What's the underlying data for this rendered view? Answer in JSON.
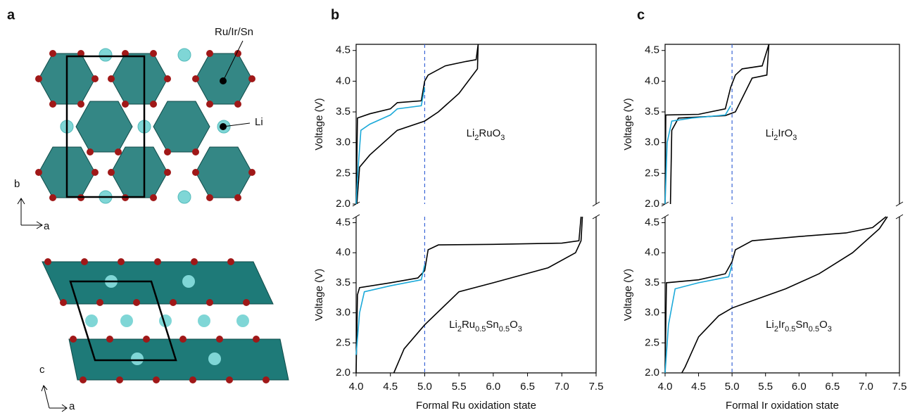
{
  "structure": {
    "panel": "a",
    "labels": [
      "Ru/Ir/Sn",
      "Li"
    ],
    "axes_top": [
      "b",
      "a"
    ],
    "axes_bottom": [
      "c",
      "a"
    ]
  },
  "chart_data": [
    {
      "type": "line",
      "panel": "b",
      "ylabel": "Voltage (V)",
      "annotation_parts": [
        "Li",
        "2",
        "RuO",
        "3"
      ],
      "xlim": [
        4,
        7.5
      ],
      "ylim": [
        2,
        4.6
      ],
      "vline": 5,
      "yticks": [
        {
          "value": 2,
          "label": "2.0"
        },
        {
          "value": 2.5,
          "label": "2.5"
        },
        {
          "value": 3,
          "label": "3.0"
        },
        {
          "value": 3.5,
          "label": "3.5"
        },
        {
          "value": 4,
          "label": "4.0"
        },
        {
          "value": 4.5,
          "label": "4.5"
        }
      ],
      "series": [
        {
          "color": "#000000",
          "x": [
            4.0,
            4.02,
            4.2,
            4.5,
            4.6,
            4.95,
            5.0,
            5.05,
            5.3,
            5.6,
            5.75,
            5.78
          ],
          "values": [
            2.0,
            3.4,
            3.47,
            3.55,
            3.65,
            3.68,
            4.0,
            4.1,
            4.25,
            4.32,
            4.35,
            4.6
          ]
        },
        {
          "color": "#000000",
          "x": [
            5.78,
            5.77,
            5.5,
            5.2,
            5.0,
            4.6,
            4.4,
            4.2,
            4.05,
            4.01
          ],
          "values": [
            4.6,
            4.2,
            3.8,
            3.5,
            3.35,
            3.2,
            3.0,
            2.8,
            2.6,
            2.0
          ]
        },
        {
          "color": "#1ba9d9",
          "x": [
            4.0,
            4.03,
            4.07,
            4.2,
            4.5,
            4.6,
            4.95,
            5.0
          ],
          "values": [
            2.0,
            2.6,
            3.2,
            3.3,
            3.45,
            3.55,
            3.6,
            3.9
          ]
        }
      ]
    },
    {
      "type": "line",
      "xlabel": "Formal Ru oxidation state",
      "ylabel": "Voltage (V)",
      "annotation_parts": [
        "Li",
        "2",
        "Ru",
        "0.5",
        "Sn",
        "0.5",
        "O",
        "3"
      ],
      "xlim": [
        4,
        7.5
      ],
      "ylim": [
        2,
        4.6
      ],
      "vline": 5,
      "xticks": [
        {
          "value": 4,
          "label": "4.0"
        },
        {
          "value": 4.5,
          "label": "4.5"
        },
        {
          "value": 5,
          "label": "5.0"
        },
        {
          "value": 5.5,
          "label": "5.5"
        },
        {
          "value": 6,
          "label": "6.0"
        },
        {
          "value": 6.5,
          "label": "6.5"
        },
        {
          "value": 7,
          "label": "7.0"
        },
        {
          "value": 7.5,
          "label": "7.5"
        }
      ],
      "yticks": [
        {
          "value": 2,
          "label": "2.0"
        },
        {
          "value": 2.5,
          "label": "2.5"
        },
        {
          "value": 3,
          "label": "3.0"
        },
        {
          "value": 3.5,
          "label": "3.5"
        },
        {
          "value": 4,
          "label": "4.0"
        },
        {
          "value": 4.5,
          "label": "4.5"
        }
      ],
      "series": [
        {
          "color": "#000000",
          "x": [
            4.0,
            4.02,
            4.05,
            4.5,
            4.9,
            5.0,
            5.05,
            5.2,
            6.0,
            7.0,
            7.25,
            7.28
          ],
          "values": [
            2.0,
            3.3,
            3.42,
            3.5,
            3.58,
            3.7,
            4.05,
            4.13,
            4.14,
            4.16,
            4.2,
            4.6
          ]
        },
        {
          "color": "#000000",
          "x": [
            7.3,
            7.28,
            7.2,
            6.8,
            6.0,
            5.5,
            5.0,
            4.7,
            4.55
          ],
          "values": [
            4.6,
            4.2,
            4.0,
            3.75,
            3.5,
            3.35,
            2.8,
            2.4,
            2.0
          ]
        },
        {
          "color": "#1ba9d9",
          "x": [
            4.0,
            4.05,
            4.12,
            4.5,
            4.95,
            5.0
          ],
          "values": [
            2.3,
            3.0,
            3.35,
            3.45,
            3.55,
            3.8
          ]
        }
      ]
    },
    {
      "type": "line",
      "panel": "c",
      "ylabel": "Voltage (V)",
      "annotation_parts": [
        "Li",
        "2",
        "IrO",
        "3"
      ],
      "xlim": [
        4,
        7.5
      ],
      "ylim": [
        2,
        4.6
      ],
      "vline": 5,
      "yticks": [
        {
          "value": 2,
          "label": "2.0"
        },
        {
          "value": 2.5,
          "label": "2.5"
        },
        {
          "value": 3,
          "label": "3.0"
        },
        {
          "value": 3.5,
          "label": "3.5"
        },
        {
          "value": 4,
          "label": "4.0"
        },
        {
          "value": 4.5,
          "label": "4.5"
        }
      ],
      "series": [
        {
          "color": "#000000",
          "x": [
            4.0,
            4.01,
            4.5,
            4.9,
            4.98,
            5.05,
            5.15,
            5.45,
            5.55
          ],
          "values": [
            2.0,
            3.45,
            3.46,
            3.55,
            3.9,
            4.1,
            4.2,
            4.25,
            4.6
          ]
        },
        {
          "color": "#000000",
          "x": [
            5.55,
            5.52,
            5.3,
            5.05,
            4.9,
            4.2,
            4.1,
            4.08
          ],
          "values": [
            4.6,
            4.1,
            4.05,
            3.5,
            3.44,
            3.4,
            3.2,
            2.0
          ]
        },
        {
          "color": "#1ba9d9",
          "x": [
            4.0,
            4.03,
            4.1,
            4.4,
            4.9,
            4.98
          ],
          "values": [
            2.0,
            3.0,
            3.35,
            3.4,
            3.45,
            3.6
          ]
        }
      ]
    },
    {
      "type": "line",
      "xlabel": "Formal Ir oxidation state",
      "ylabel": "Voltage (V)",
      "annotation_parts": [
        "Li",
        "2",
        "Ir",
        "0.5",
        "Sn",
        "0.5",
        "O",
        "3"
      ],
      "xlim": [
        4,
        7.5
      ],
      "ylim": [
        2,
        4.6
      ],
      "vline": 5,
      "xticks": [
        {
          "value": 4,
          "label": "4.0"
        },
        {
          "value": 4.5,
          "label": "4.5"
        },
        {
          "value": 5,
          "label": "5.0"
        },
        {
          "value": 5.5,
          "label": "5.5"
        },
        {
          "value": 6,
          "label": "6.0"
        },
        {
          "value": 6.5,
          "label": "6.5"
        },
        {
          "value": 7,
          "label": "7.0"
        },
        {
          "value": 7.5,
          "label": "7.5"
        }
      ],
      "yticks": [
        {
          "value": 2,
          "label": "2.0"
        },
        {
          "value": 2.5,
          "label": "2.5"
        },
        {
          "value": 3,
          "label": "3.0"
        },
        {
          "value": 3.5,
          "label": "3.5"
        },
        {
          "value": 4,
          "label": "4.0"
        },
        {
          "value": 4.5,
          "label": "4.5"
        }
      ],
      "series": [
        {
          "color": "#000000",
          "x": [
            4.0,
            4.02,
            4.5,
            4.9,
            5.0,
            5.05,
            5.3,
            6.0,
            6.7,
            7.1,
            7.3
          ],
          "values": [
            2.0,
            3.5,
            3.55,
            3.65,
            3.85,
            4.05,
            4.2,
            4.27,
            4.33,
            4.42,
            4.6
          ]
        },
        {
          "color": "#000000",
          "x": [
            7.32,
            7.2,
            6.8,
            6.3,
            5.8,
            5.3,
            5.0,
            4.8,
            4.5,
            4.3,
            4.25
          ],
          "values": [
            4.6,
            4.4,
            4.0,
            3.65,
            3.4,
            3.2,
            3.08,
            2.95,
            2.6,
            2.1,
            2.0
          ]
        },
        {
          "color": "#1ba9d9",
          "x": [
            4.0,
            4.05,
            4.15,
            4.5,
            4.95,
            5.0
          ],
          "values": [
            2.0,
            2.8,
            3.4,
            3.5,
            3.6,
            3.8
          ]
        }
      ]
    }
  ]
}
